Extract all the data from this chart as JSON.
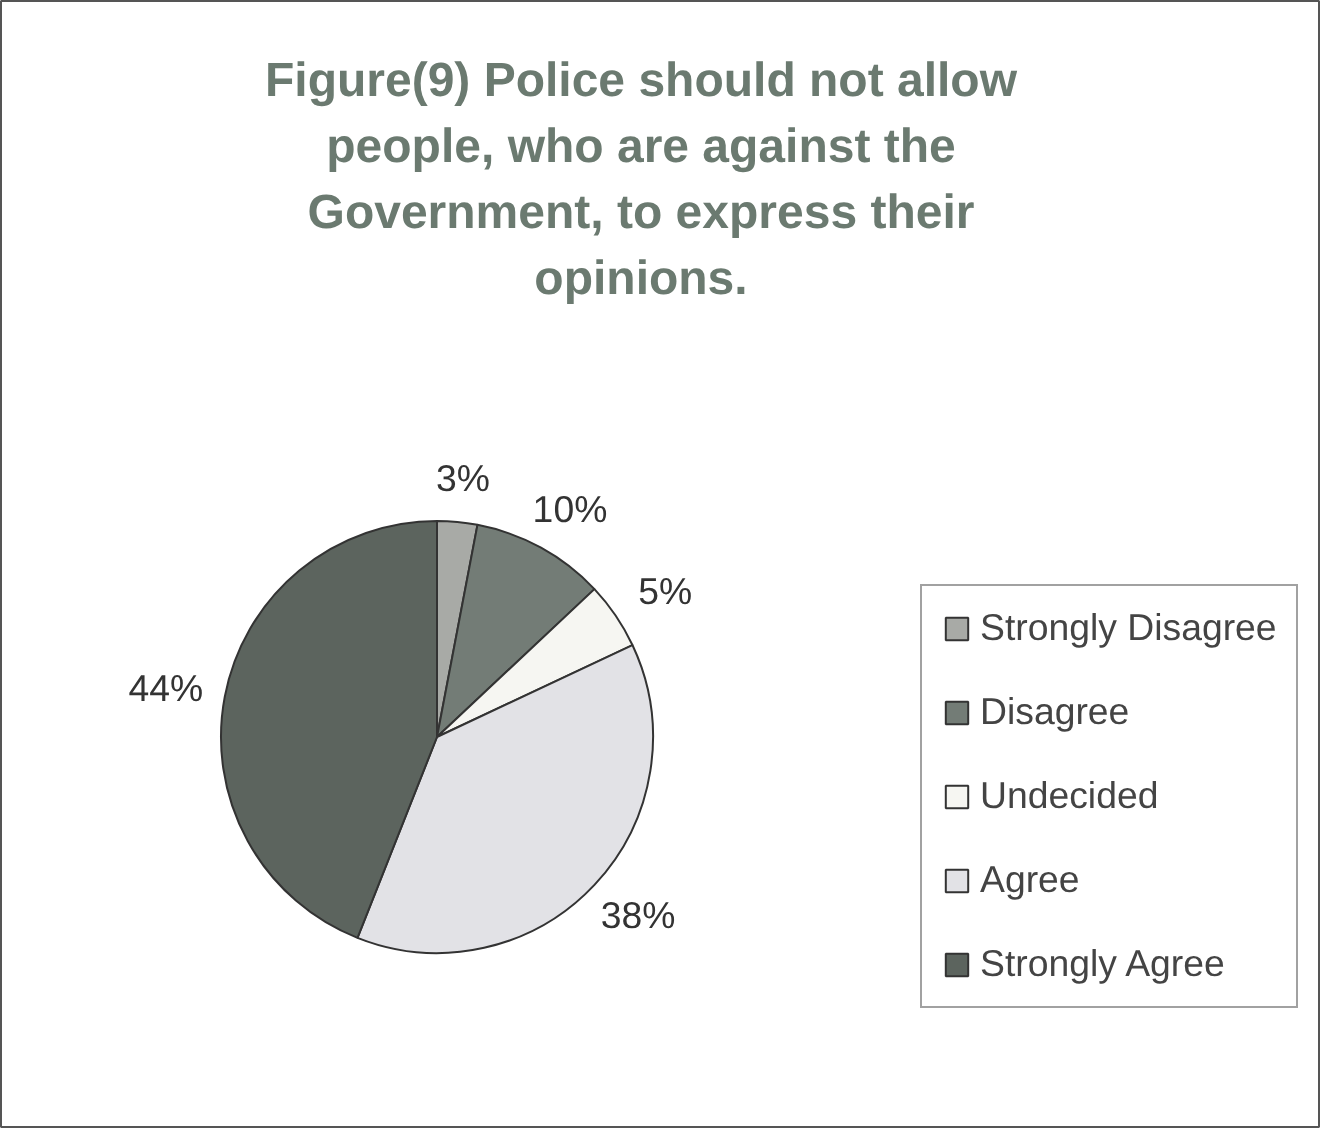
{
  "chart_data": {
    "type": "pie",
    "title": "Figure(9) Police should not allow people, who are against the Government, to express their opinions.",
    "categories": [
      "Strongly Disagree",
      "Disagree",
      "Undecided",
      "Agree",
      "Strongly Agree"
    ],
    "values": [
      3,
      10,
      5,
      38,
      44
    ],
    "value_labels": [
      "3%",
      "10%",
      "5%",
      "38%",
      "44%"
    ],
    "colors": [
      "#a8aaa6",
      "#737c76",
      "#f6f6f2",
      "#e2e2e6",
      "#5c645e"
    ],
    "legend": "right"
  }
}
